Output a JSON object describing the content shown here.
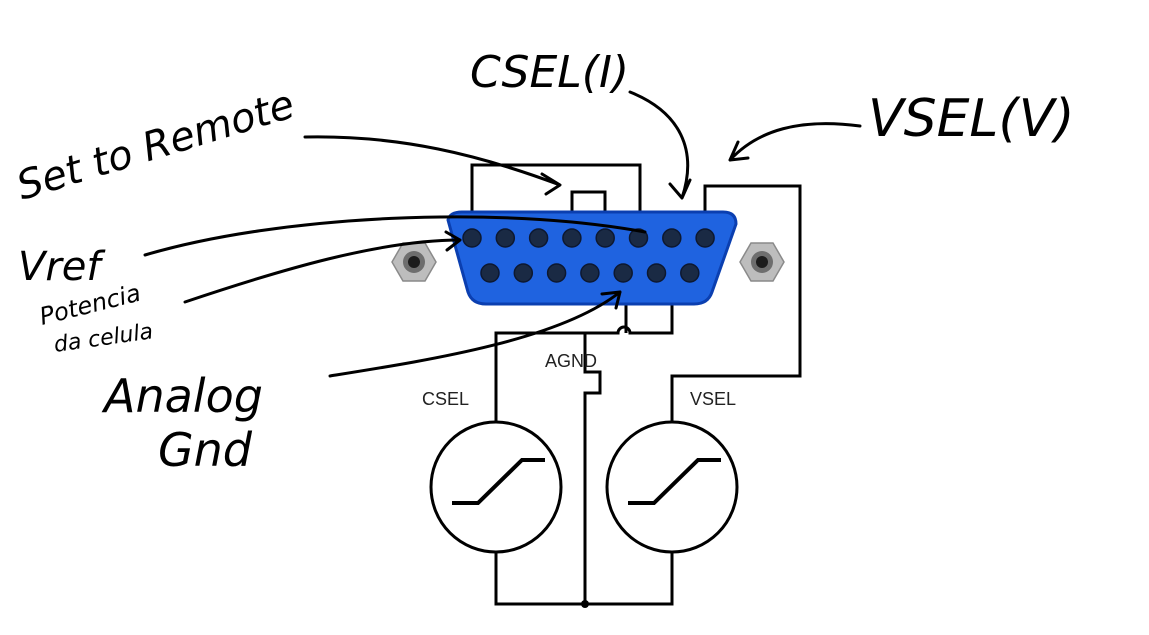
{
  "annotations": {
    "csel_i": "CSEL(I)",
    "vsel_v": "VSEL(V)",
    "set_to_remote": "Set to Remote",
    "vref": "Vref",
    "potencia_line1": "Potencia",
    "potencia_line2": "da celula",
    "analog_line1": "Analog",
    "analog_line2": "Gnd"
  },
  "diagram_labels": {
    "agnd": "AGND",
    "csel": "CSEL",
    "vsel": "VSEL"
  },
  "colors": {
    "connector_blue": "#1f63e0",
    "connector_edge": "#0b3fb0",
    "pin": "#1a2a44",
    "screw": "#9a9a9a",
    "wire": "#000000"
  },
  "icons": [
    "screw-icon-left",
    "screw-icon-right",
    "meter-icon-csel",
    "meter-icon-vsel"
  ]
}
